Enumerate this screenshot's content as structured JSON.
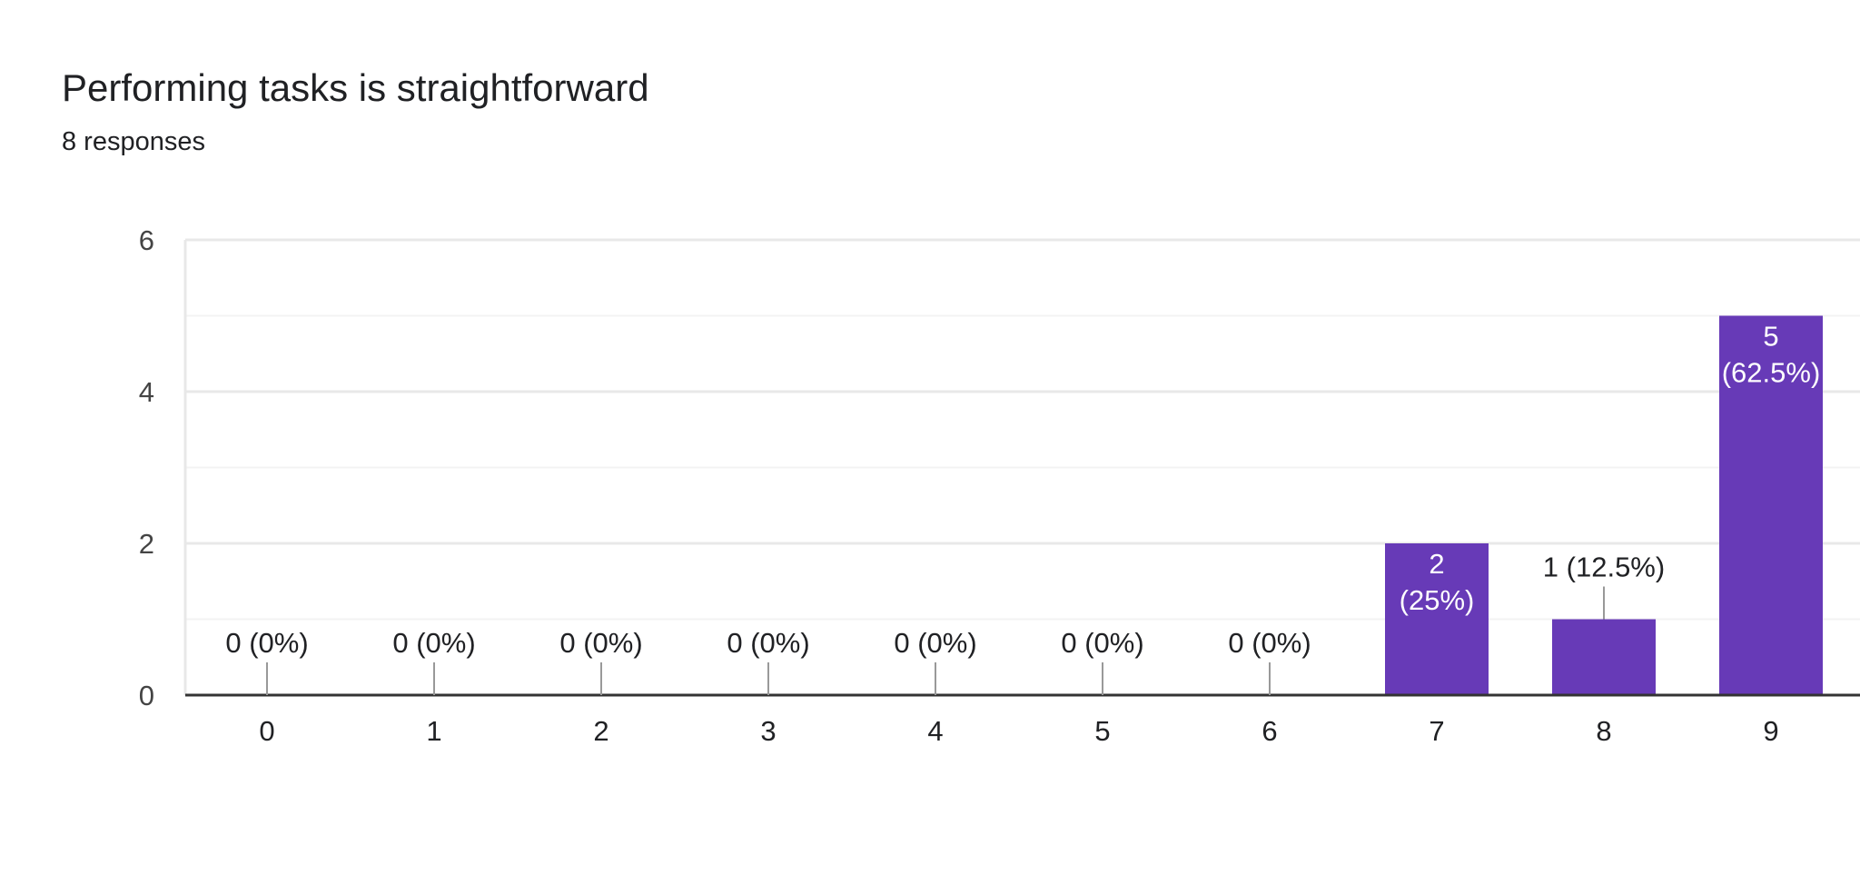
{
  "header": {
    "title": "Performing tasks is straightforward",
    "responses": "8 responses"
  },
  "colors": {
    "bar": "#673ab7",
    "text": "#202124",
    "axis_text": "#444444",
    "grid_major": "#e8e8e8",
    "grid_minor": "#f3f3f3",
    "baseline": "#333333",
    "leader": "#999999"
  },
  "chart_data": {
    "type": "bar",
    "title": "Performing tasks is straightforward",
    "xlabel": "",
    "ylabel": "",
    "categories": [
      "0",
      "1",
      "2",
      "3",
      "4",
      "5",
      "6",
      "7",
      "8",
      "9"
    ],
    "values": [
      0,
      0,
      0,
      0,
      0,
      0,
      0,
      2,
      1,
      5
    ],
    "data_labels": [
      "0 (0%)",
      "0 (0%)",
      "0 (0%)",
      "0 (0%)",
      "0 (0%)",
      "0 (0%)",
      "0 (0%)",
      "2 (25%)",
      "1 (12.5%)",
      "5 (62.5%)"
    ],
    "ylim": [
      0,
      6
    ],
    "yticks": [
      0,
      2,
      4,
      6
    ],
    "grid": true,
    "legend": "none"
  }
}
